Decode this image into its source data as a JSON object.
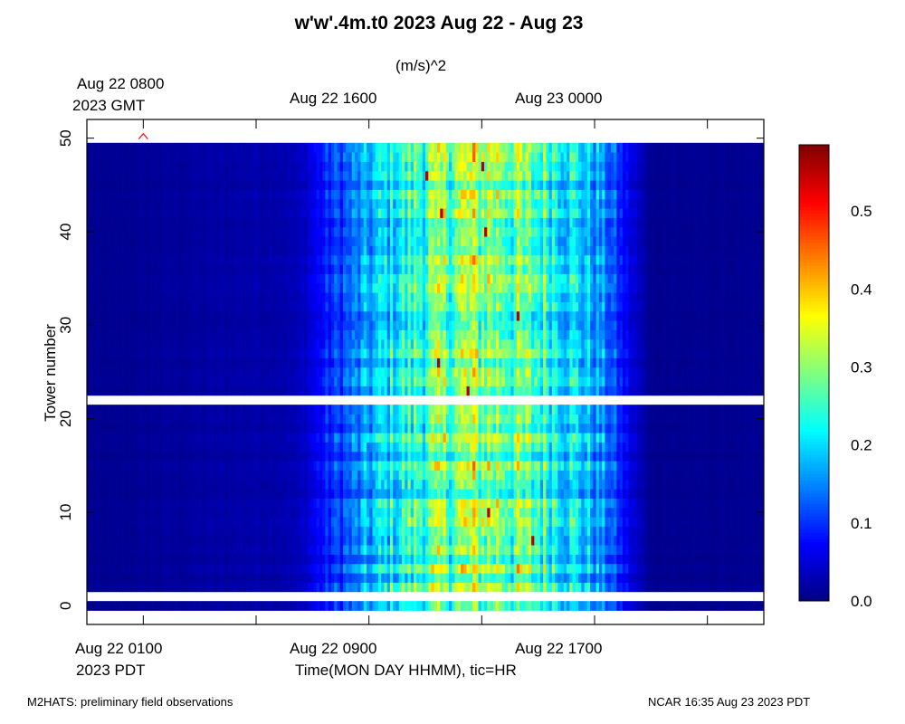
{
  "chart_data": {
    "type": "heatmap",
    "title": "w'w'.4m.t0 2023 Aug 22 - Aug 23",
    "colorbar_label": "(m/s)^2",
    "ylabel": "Tower number",
    "xlabel": "Time(MON DAY HHMM), tic=HR",
    "x_range_hours_pdt": [
      -1,
      23
    ],
    "ylim": [
      -2,
      52
    ],
    "y_ticks": [
      "0",
      "10",
      "20",
      "30",
      "40",
      "50"
    ],
    "y_tick_values": [
      0,
      10,
      20,
      30,
      40,
      50
    ],
    "top_axis": {
      "labels": [
        "Aug 22 0800",
        "Aug 22 1600",
        "Aug 23 0000"
      ],
      "tick_hours": [
        1,
        9,
        17
      ],
      "unit_label": "2023 GMT"
    },
    "bottom_axis": {
      "labels": [
        "Aug 22 0100",
        "Aug 22 0900",
        "Aug 22 1700"
      ],
      "tick_hours": [
        1,
        9,
        17
      ],
      "minor_tick_hours": [
        5,
        13,
        21
      ],
      "unit_label": "2023 PDT"
    },
    "colorbar": {
      "min": 0.0,
      "max": 0.585,
      "ticks": [
        "0.0",
        "0.1",
        "0.2",
        "0.3",
        "0.4",
        "0.5"
      ],
      "tick_values": [
        0.0,
        0.1,
        0.2,
        0.3,
        0.4,
        0.5
      ],
      "colormap": "jet"
    },
    "missing_tower_bands": [
      [
        0.5,
        1.5
      ],
      [
        21.5,
        22.5
      ]
    ],
    "data_tower_range": [
      -0.5,
      49.5
    ],
    "time_profile": {
      "hours": [
        0,
        6.5,
        7.5,
        8.5,
        9.5,
        10.5,
        11.5,
        12.5,
        13.5,
        14.5,
        15.5,
        16.5,
        17.5,
        18,
        18.5,
        19
      ],
      "peak_values": [
        0.01,
        0.03,
        0.09,
        0.14,
        0.2,
        0.25,
        0.28,
        0.31,
        0.31,
        0.27,
        0.25,
        0.2,
        0.14,
        0.08,
        0.04,
        0.01
      ]
    },
    "marker": {
      "symbol": "^",
      "tower": 50,
      "hour": 1,
      "color": "#ff0000"
    }
  },
  "footer_left": "M2HATS: preliminary field observations",
  "footer_right": "NCAR 16:35 Aug 23 2023 PDT"
}
